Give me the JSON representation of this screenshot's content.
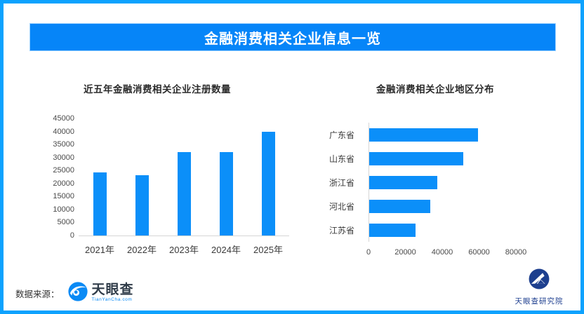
{
  "header": {
    "title": "金融消费相关企业信息一览"
  },
  "chart_data": [
    {
      "type": "bar",
      "orientation": "vertical",
      "title": "近五年金融消费相关企业注册数量",
      "categories": [
        "2021年",
        "2022年",
        "2023年",
        "2024年",
        "2025年"
      ],
      "values": [
        24300,
        23300,
        32000,
        32000,
        39800
      ],
      "xlabel": "",
      "ylabel": "",
      "ylim": [
        0,
        45000
      ],
      "ytick_step": 5000,
      "grid": false,
      "legend": false,
      "bar_color": "#0b8ff9"
    },
    {
      "type": "bar",
      "orientation": "horizontal",
      "title": "金融消费相关企业地区分布",
      "categories": [
        "广东省",
        "山东省",
        "浙江省",
        "河北省",
        "江苏省"
      ],
      "values": [
        59000,
        51000,
        37000,
        33000,
        25000
      ],
      "xlabel": "",
      "ylabel": "",
      "xlim": [
        0,
        80000
      ],
      "xtick_step": 20000,
      "grid": false,
      "legend": false,
      "bar_color": "#0b8ff9"
    }
  ],
  "footer": {
    "source_label": "数据来源：",
    "tianyancha_logo": {
      "name": "天眼查",
      "domain": "TianYanCha.com"
    },
    "institute_logo": {
      "name": "天眼查研究院"
    }
  },
  "colors": {
    "frame_border": "#0da2fe",
    "banner_bg": "#0685f8",
    "bar_blue": "#0b8ff9",
    "institute_navy": "#1c3e8f"
  }
}
